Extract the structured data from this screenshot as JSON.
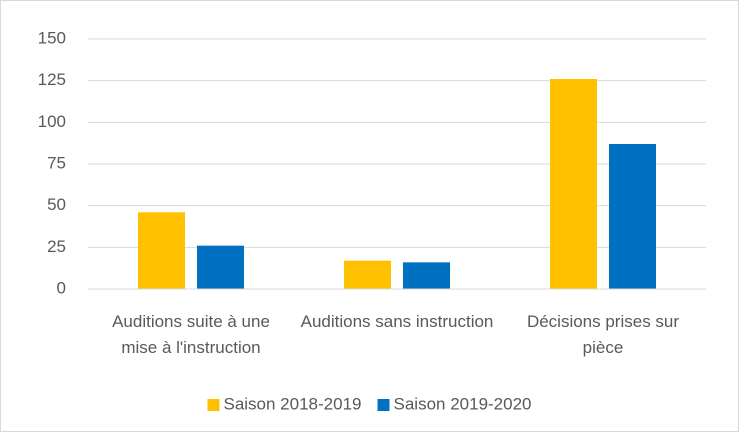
{
  "chart_data": {
    "type": "bar",
    "categories": [
      "Auditions suite à une mise à l'instruction",
      "Auditions sans instruction",
      "Décisions prises sur pièce"
    ],
    "series": [
      {
        "name": "Saison 2018-2019",
        "color": "#FFC000",
        "values": [
          46,
          17,
          126
        ]
      },
      {
        "name": "Saison 2019-2020",
        "color": "#0070C0",
        "values": [
          26,
          16,
          87
        ]
      }
    ],
    "ylim": [
      0,
      150
    ],
    "yticks": [
      0,
      25,
      50,
      75,
      100,
      125,
      150
    ],
    "grid": true,
    "legend": "bottom"
  }
}
